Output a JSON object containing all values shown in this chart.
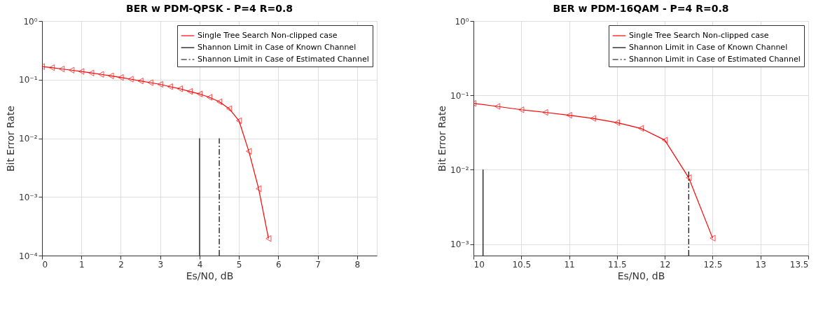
{
  "chart_data": [
    {
      "type": "line",
      "title": "BER w PDM-QPSK - P=4 R=0.8",
      "xlabel": "Es/N0, dB",
      "ylabel": "Bit Error Rate",
      "log": "y",
      "grid": true,
      "legend": "top right",
      "xlim": [
        0,
        8.5
      ],
      "xticks": [
        0,
        1,
        2,
        3,
        4,
        5,
        6,
        7,
        8
      ],
      "ylim": [
        0.0001,
        1
      ],
      "yticks": [
        {
          "value": 0.0001,
          "label": "10⁻⁴"
        },
        {
          "value": 0.001,
          "label": "10⁻³"
        },
        {
          "value": 0.01,
          "label": "10⁻²"
        },
        {
          "value": 0.1,
          "label": "10⁻¹"
        },
        {
          "value": 1,
          "label": "10⁰"
        }
      ],
      "series": [
        {
          "name": "Single Tree Search Non-clipped case",
          "color": "#ff0000",
          "marker": "triangle",
          "line_style": "solid",
          "x": [
            0,
            0.25,
            0.5,
            0.75,
            1,
            1.25,
            1.5,
            1.75,
            2,
            2.25,
            2.5,
            2.75,
            3,
            3.25,
            3.5,
            3.75,
            4,
            4.25,
            4.5,
            4.75,
            5,
            5.25,
            5.5,
            5.75
          ],
          "values": [
            0.167,
            0.16,
            0.152,
            0.145,
            0.138,
            0.13,
            0.123,
            0.116,
            0.109,
            0.102,
            0.095,
            0.089,
            0.083,
            0.076,
            0.07,
            0.063,
            0.057,
            0.05,
            0.042,
            0.032,
            0.02,
            0.006,
            0.00138,
            0.000195
          ]
        },
        {
          "name": "Shannon Limit in Case of Known Channel",
          "color": "#000000",
          "marker": "none",
          "line_style": "solid",
          "x": [
            4,
            4
          ],
          "values": [
            0.0001,
            0.01
          ]
        },
        {
          "name": "Shannon Limit in Case of Estimated Channel",
          "color": "#000000",
          "marker": "none",
          "line_style": "dashed",
          "x": [
            4.5,
            4.5
          ],
          "values": [
            0.0001,
            0.01
          ]
        }
      ]
    },
    {
      "type": "line",
      "title": "BER w PDM-16QAM - P=4 R=0.8",
      "xlabel": "Es/N0, dB",
      "ylabel": "Bit Error Rate",
      "log": "y",
      "grid": true,
      "legend": "top right",
      "xlim": [
        10,
        13.5
      ],
      "xticks": [
        10,
        10.5,
        11,
        11.5,
        12,
        12.5,
        13,
        13.5
      ],
      "ylim": [
        0.0007,
        1
      ],
      "yticks": [
        {
          "value": 0.001,
          "label": "10⁻³"
        },
        {
          "value": 0.01,
          "label": "10⁻²"
        },
        {
          "value": 0.1,
          "label": "10⁻¹"
        },
        {
          "value": 1,
          "label": "10⁰"
        }
      ],
      "series": [
        {
          "name": "Single Tree Search Non-clipped case",
          "color": "#ff0000",
          "marker": "triangle",
          "line_style": "solid",
          "x": [
            10,
            10.25,
            10.5,
            10.75,
            11,
            11.25,
            11.5,
            11.75,
            12,
            12.25,
            12.5
          ],
          "values": [
            0.078,
            0.071,
            0.064,
            0.059,
            0.054,
            0.049,
            0.043,
            0.036,
            0.025,
            0.0078,
            0.0012
          ]
        },
        {
          "name": "Shannon Limit in Case of Known Channel",
          "color": "#000000",
          "marker": "none",
          "line_style": "solid",
          "x": [
            10.1,
            10.1
          ],
          "values": [
            0.0007,
            0.01
          ]
        },
        {
          "name": "Shannon Limit in Case of Estimated Channel",
          "color": "#000000",
          "marker": "none",
          "line_style": "dashed",
          "x": [
            12.25,
            12.25
          ],
          "values": [
            0.0007,
            0.01
          ]
        }
      ]
    }
  ]
}
